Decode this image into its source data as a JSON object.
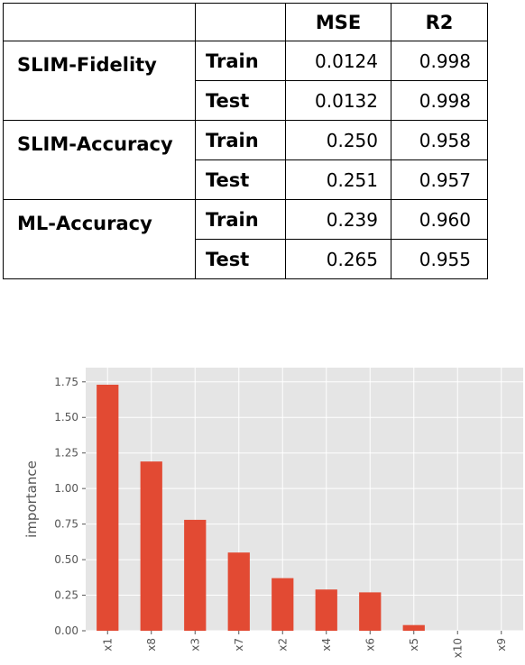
{
  "table": {
    "header": [
      "",
      "",
      "MSE",
      "R2"
    ],
    "groups": [
      {
        "model": "SLIM-Fidelity",
        "rows": [
          {
            "split": "Train",
            "mse": "0.0124",
            "r2": "0.998"
          },
          {
            "split": "Test",
            "mse": "0.0132",
            "r2": "0.998"
          }
        ]
      },
      {
        "model": "SLIM-Accuracy",
        "rows": [
          {
            "split": "Train",
            "mse": "0.250",
            "r2": "0.958"
          },
          {
            "split": "Test",
            "mse": "0.251",
            "r2": "0.957"
          }
        ]
      },
      {
        "model": "ML-Accuracy",
        "rows": [
          {
            "split": "Train",
            "mse": "0.239",
            "r2": "0.960"
          },
          {
            "split": "Test",
            "mse": "0.265",
            "r2": "0.955"
          }
        ]
      }
    ]
  },
  "chart_data": {
    "type": "bar",
    "categories": [
      "x1",
      "x8",
      "x3",
      "x7",
      "x2",
      "x4",
      "x6",
      "x5",
      "x10",
      "x9"
    ],
    "values": [
      1.73,
      1.19,
      0.78,
      0.55,
      0.37,
      0.29,
      0.27,
      0.04,
      0.0,
      0.0
    ],
    "title": "",
    "xlabel": "",
    "ylabel": "importance",
    "ylim": [
      0,
      1.85
    ],
    "yticks": [
      "0.00",
      "0.25",
      "0.50",
      "0.75",
      "1.00",
      "1.25",
      "1.50",
      "1.75"
    ],
    "grid": true,
    "colors": {
      "bar": "#E24A33",
      "background": "#E5E5E5",
      "grid": "#FFFFFF",
      "tick_text": "#555555"
    }
  }
}
